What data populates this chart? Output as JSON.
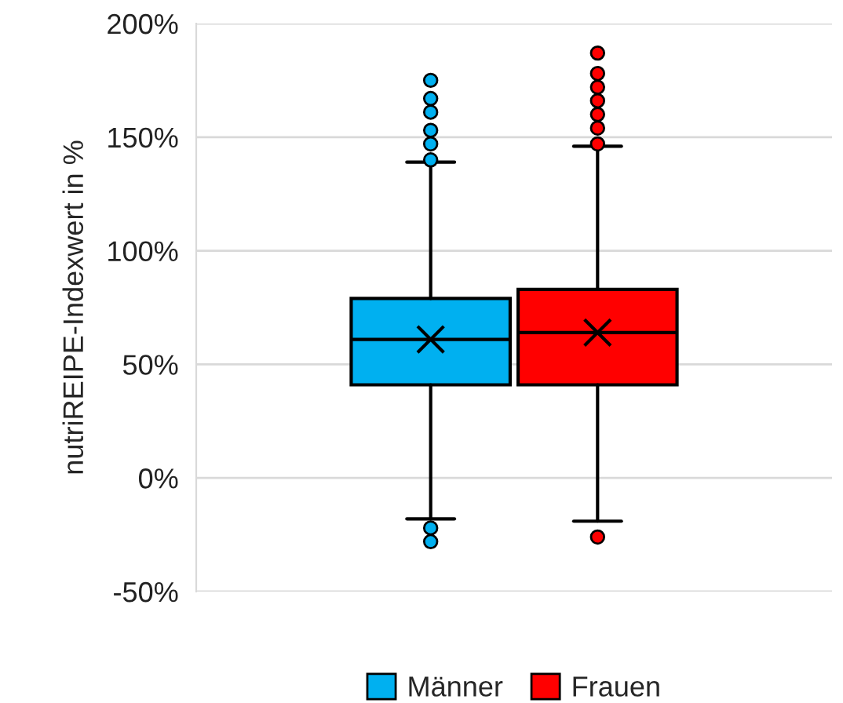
{
  "chart_data": {
    "type": "box",
    "ylabel": "nutriREIPE-Indexwert in %",
    "categories": [
      null
    ],
    "series": [
      {
        "name": "Männer",
        "color": "#00b0f0",
        "boxes": [
          {
            "low": -18,
            "q1": 41,
            "median": 61,
            "q3": 79,
            "high": 139,
            "mean": 61,
            "outliers": [
              175,
              167,
              161,
              153,
              147,
              140,
              -22,
              -28
            ]
          }
        ]
      },
      {
        "name": "Frauen",
        "color": "#ff0000",
        "boxes": [
          {
            "low": -19,
            "q1": 41,
            "median": 64,
            "q3": 83,
            "high": 146,
            "mean": 64,
            "outliers": [
              187,
              178,
              172,
              166,
              160,
              154,
              147,
              -26
            ]
          }
        ]
      }
    ],
    "ylim": [
      -50,
      200
    ],
    "yticks": [
      {
        "value": -50,
        "label": "-50%"
      },
      {
        "value": 0,
        "label": "0%"
      },
      {
        "value": 50,
        "label": "50%"
      },
      {
        "value": 100,
        "label": "100%"
      },
      {
        "value": 150,
        "label": "150%"
      },
      {
        "value": 200,
        "label": "200%"
      }
    ],
    "grid": "y",
    "legend": "bottom"
  }
}
